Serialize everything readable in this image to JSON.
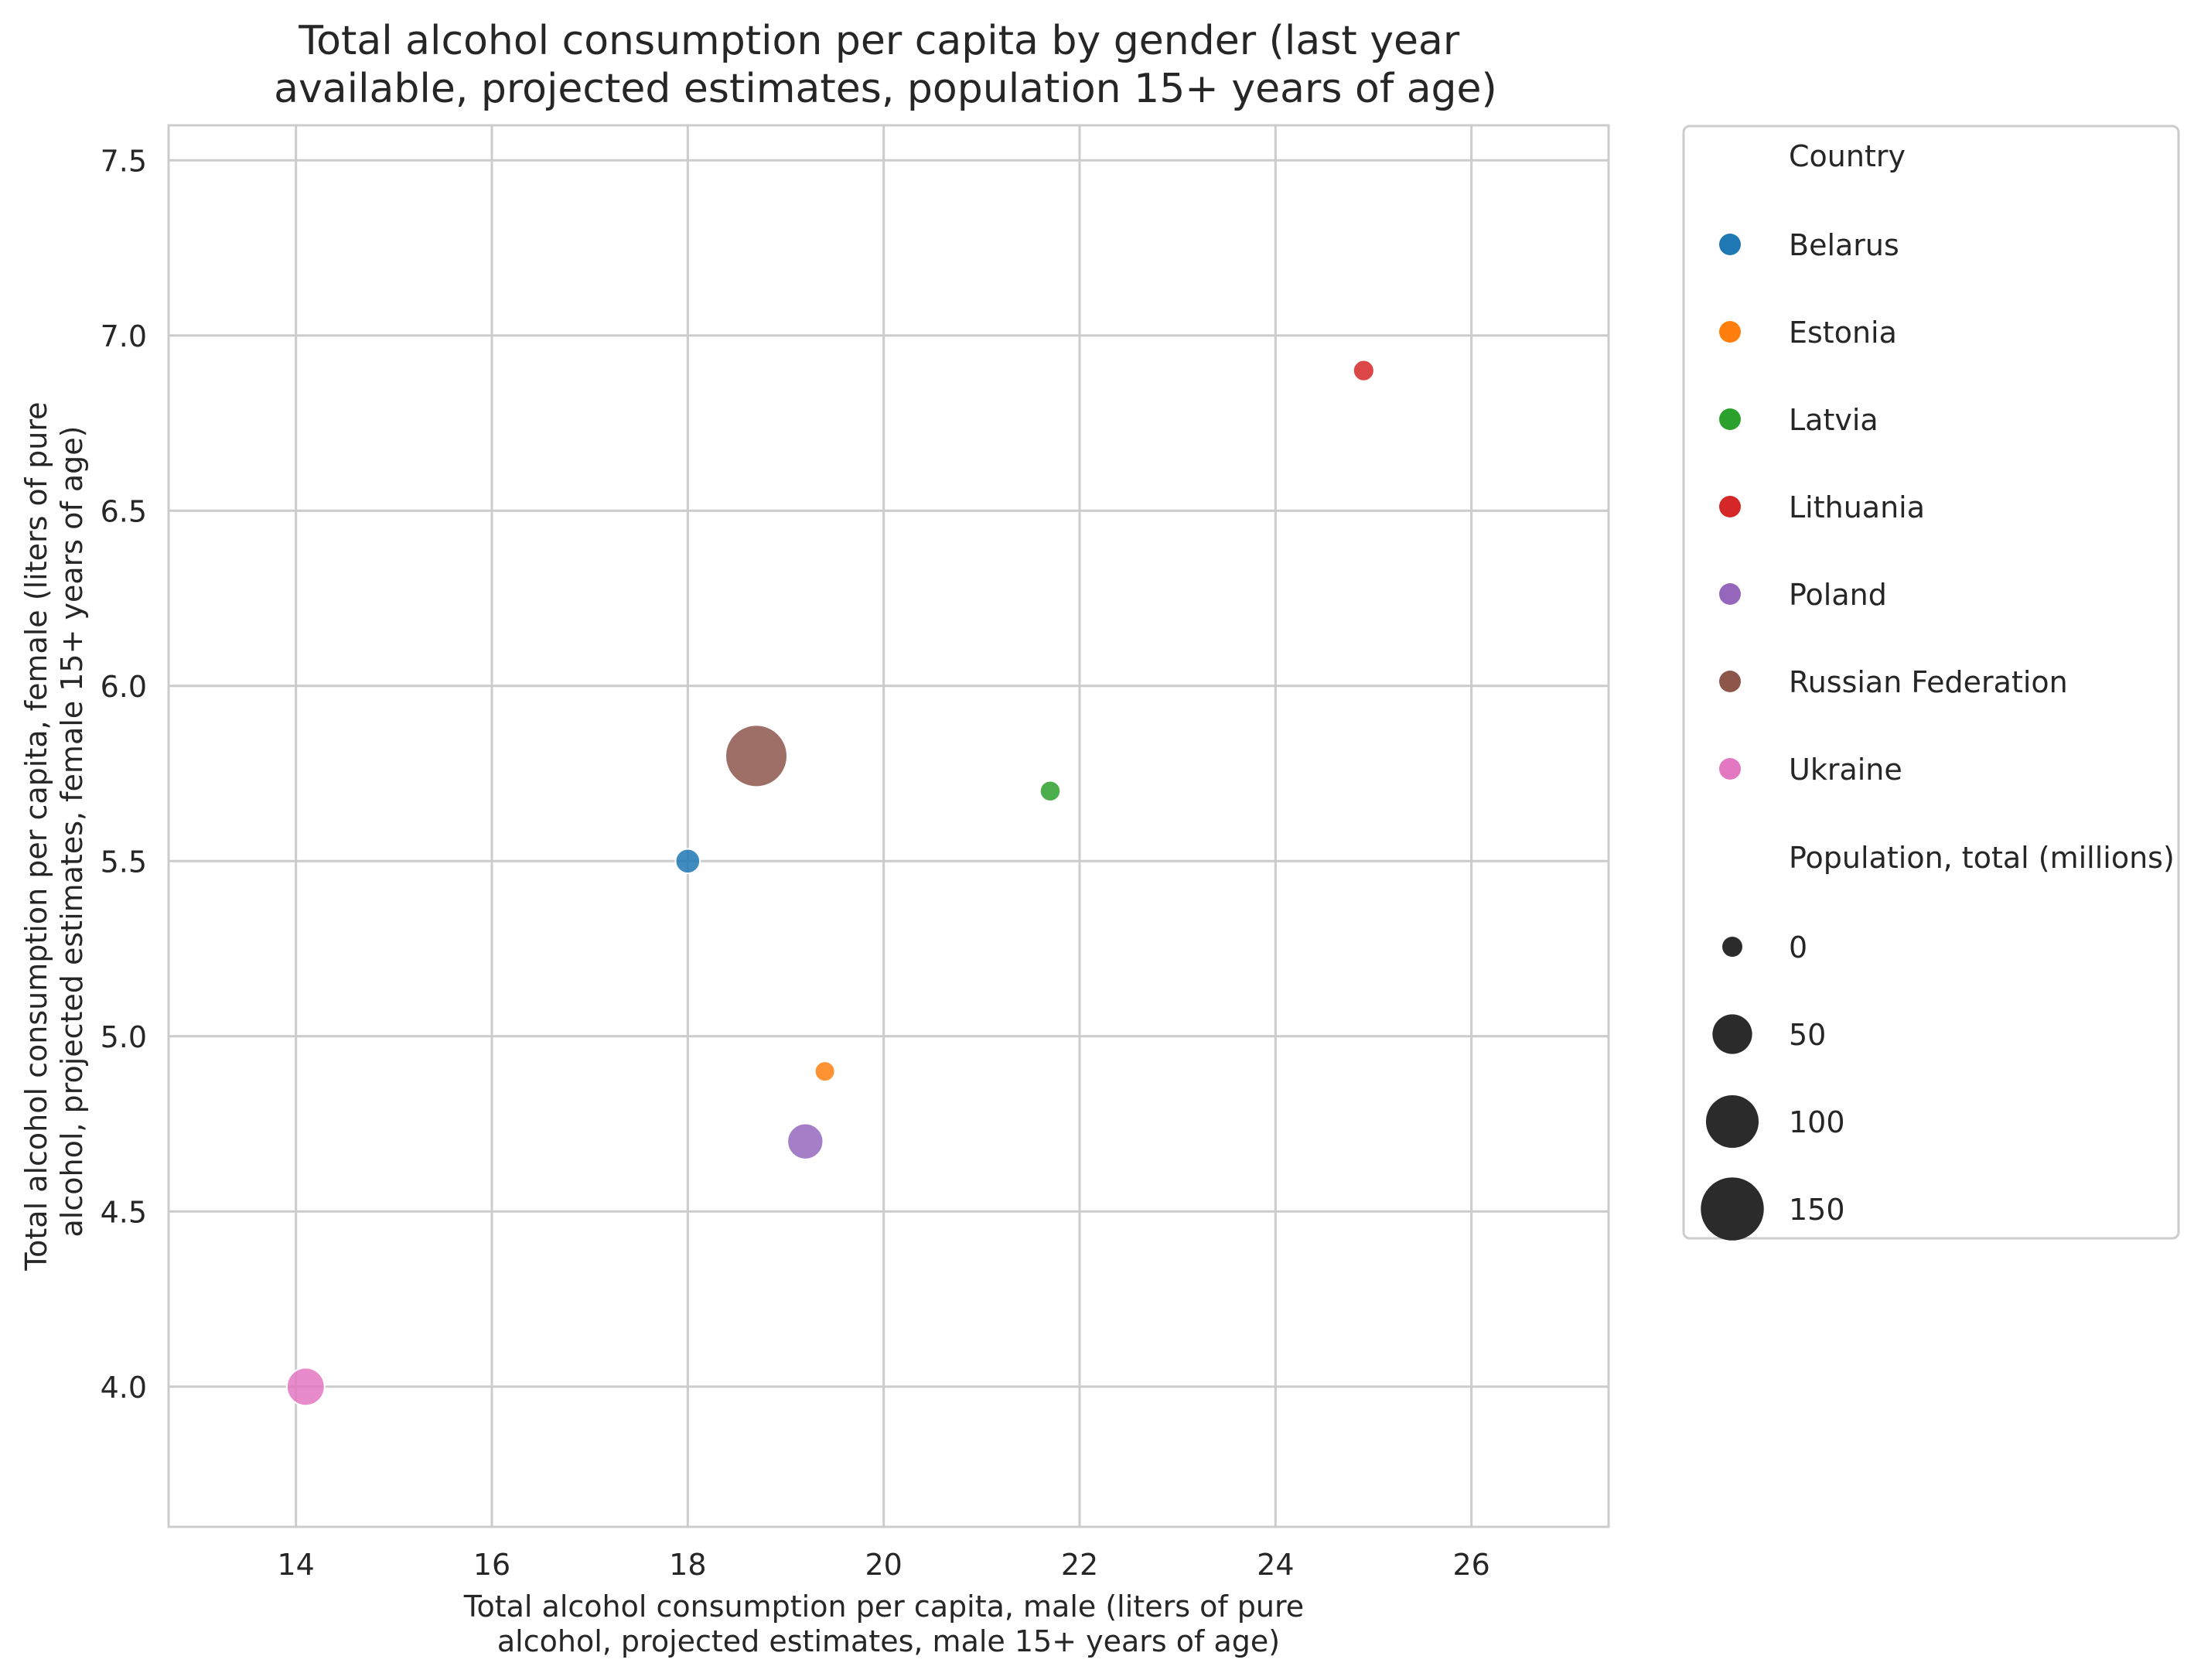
{
  "chart_data": {
    "type": "scatter",
    "title_lines": [
      "Total alcohol consumption per capita by gender (last year",
      "available, projected estimates, population 15+ years of age)"
    ],
    "xlabel_lines": [
      "Total alcohol consumption per capita, male (liters of pure",
      "alcohol, projected estimates, male 15+ years of age)"
    ],
    "ylabel_lines": [
      "Total alcohol consumption per capita, female (liters of pure",
      "alcohol, projected estimates, female 15+ years of age)"
    ],
    "xlim": [
      12.7,
      27.4
    ],
    "ylim": [
      3.6,
      7.6
    ],
    "x_ticks": [
      14,
      16,
      18,
      20,
      22,
      24,
      26
    ],
    "y_ticks": [
      4.0,
      4.5,
      5.0,
      5.5,
      6.0,
      6.5,
      7.0,
      7.5
    ],
    "y_tick_decimals": 1,
    "grid": true,
    "legend_position": "outside right",
    "points": [
      {
        "country": "Belarus",
        "x": 18.0,
        "y": 5.5,
        "population": 9.4,
        "color": "#1f77b4"
      },
      {
        "country": "Estonia",
        "x": 19.4,
        "y": 4.9,
        "population": 1.3,
        "color": "#ff7f0e"
      },
      {
        "country": "Latvia",
        "x": 21.7,
        "y": 5.7,
        "population": 1.9,
        "color": "#2ca02c"
      },
      {
        "country": "Lithuania",
        "x": 24.9,
        "y": 6.9,
        "population": 2.8,
        "color": "#d62728"
      },
      {
        "country": "Poland",
        "x": 19.2,
        "y": 4.7,
        "population": 38.0,
        "color": "#9467bd"
      },
      {
        "country": "Russian Federation",
        "x": 18.7,
        "y": 5.8,
        "population": 144.0,
        "color": "#8c564b"
      },
      {
        "country": "Ukraine",
        "x": 14.1,
        "y": 4.0,
        "population": 44.0,
        "color": "#e377c2"
      }
    ],
    "legend": {
      "hue_title": "Country",
      "hue_items": [
        {
          "label": "Belarus",
          "color": "#1f77b4"
        },
        {
          "label": "Estonia",
          "color": "#ff7f0e"
        },
        {
          "label": "Latvia",
          "color": "#2ca02c"
        },
        {
          "label": "Lithuania",
          "color": "#d62728"
        },
        {
          "label": "Poland",
          "color": "#9467bd"
        },
        {
          "label": "Russian Federation",
          "color": "#8c564b"
        },
        {
          "label": "Ukraine",
          "color": "#e377c2"
        }
      ],
      "size_title": "Population, total (millions)",
      "size_items": [
        {
          "label": "0",
          "value": 0
        },
        {
          "label": "50",
          "value": 50
        },
        {
          "label": "100",
          "value": 100
        },
        {
          "label": "150",
          "value": 150
        }
      ],
      "size_marker_color": "#2b2b2b"
    },
    "size_range_population": [
      1.3,
      144.0
    ],
    "colors": {
      "grid": "#cccccc",
      "axes_edge": "#cccccc",
      "text": "#262626"
    }
  }
}
